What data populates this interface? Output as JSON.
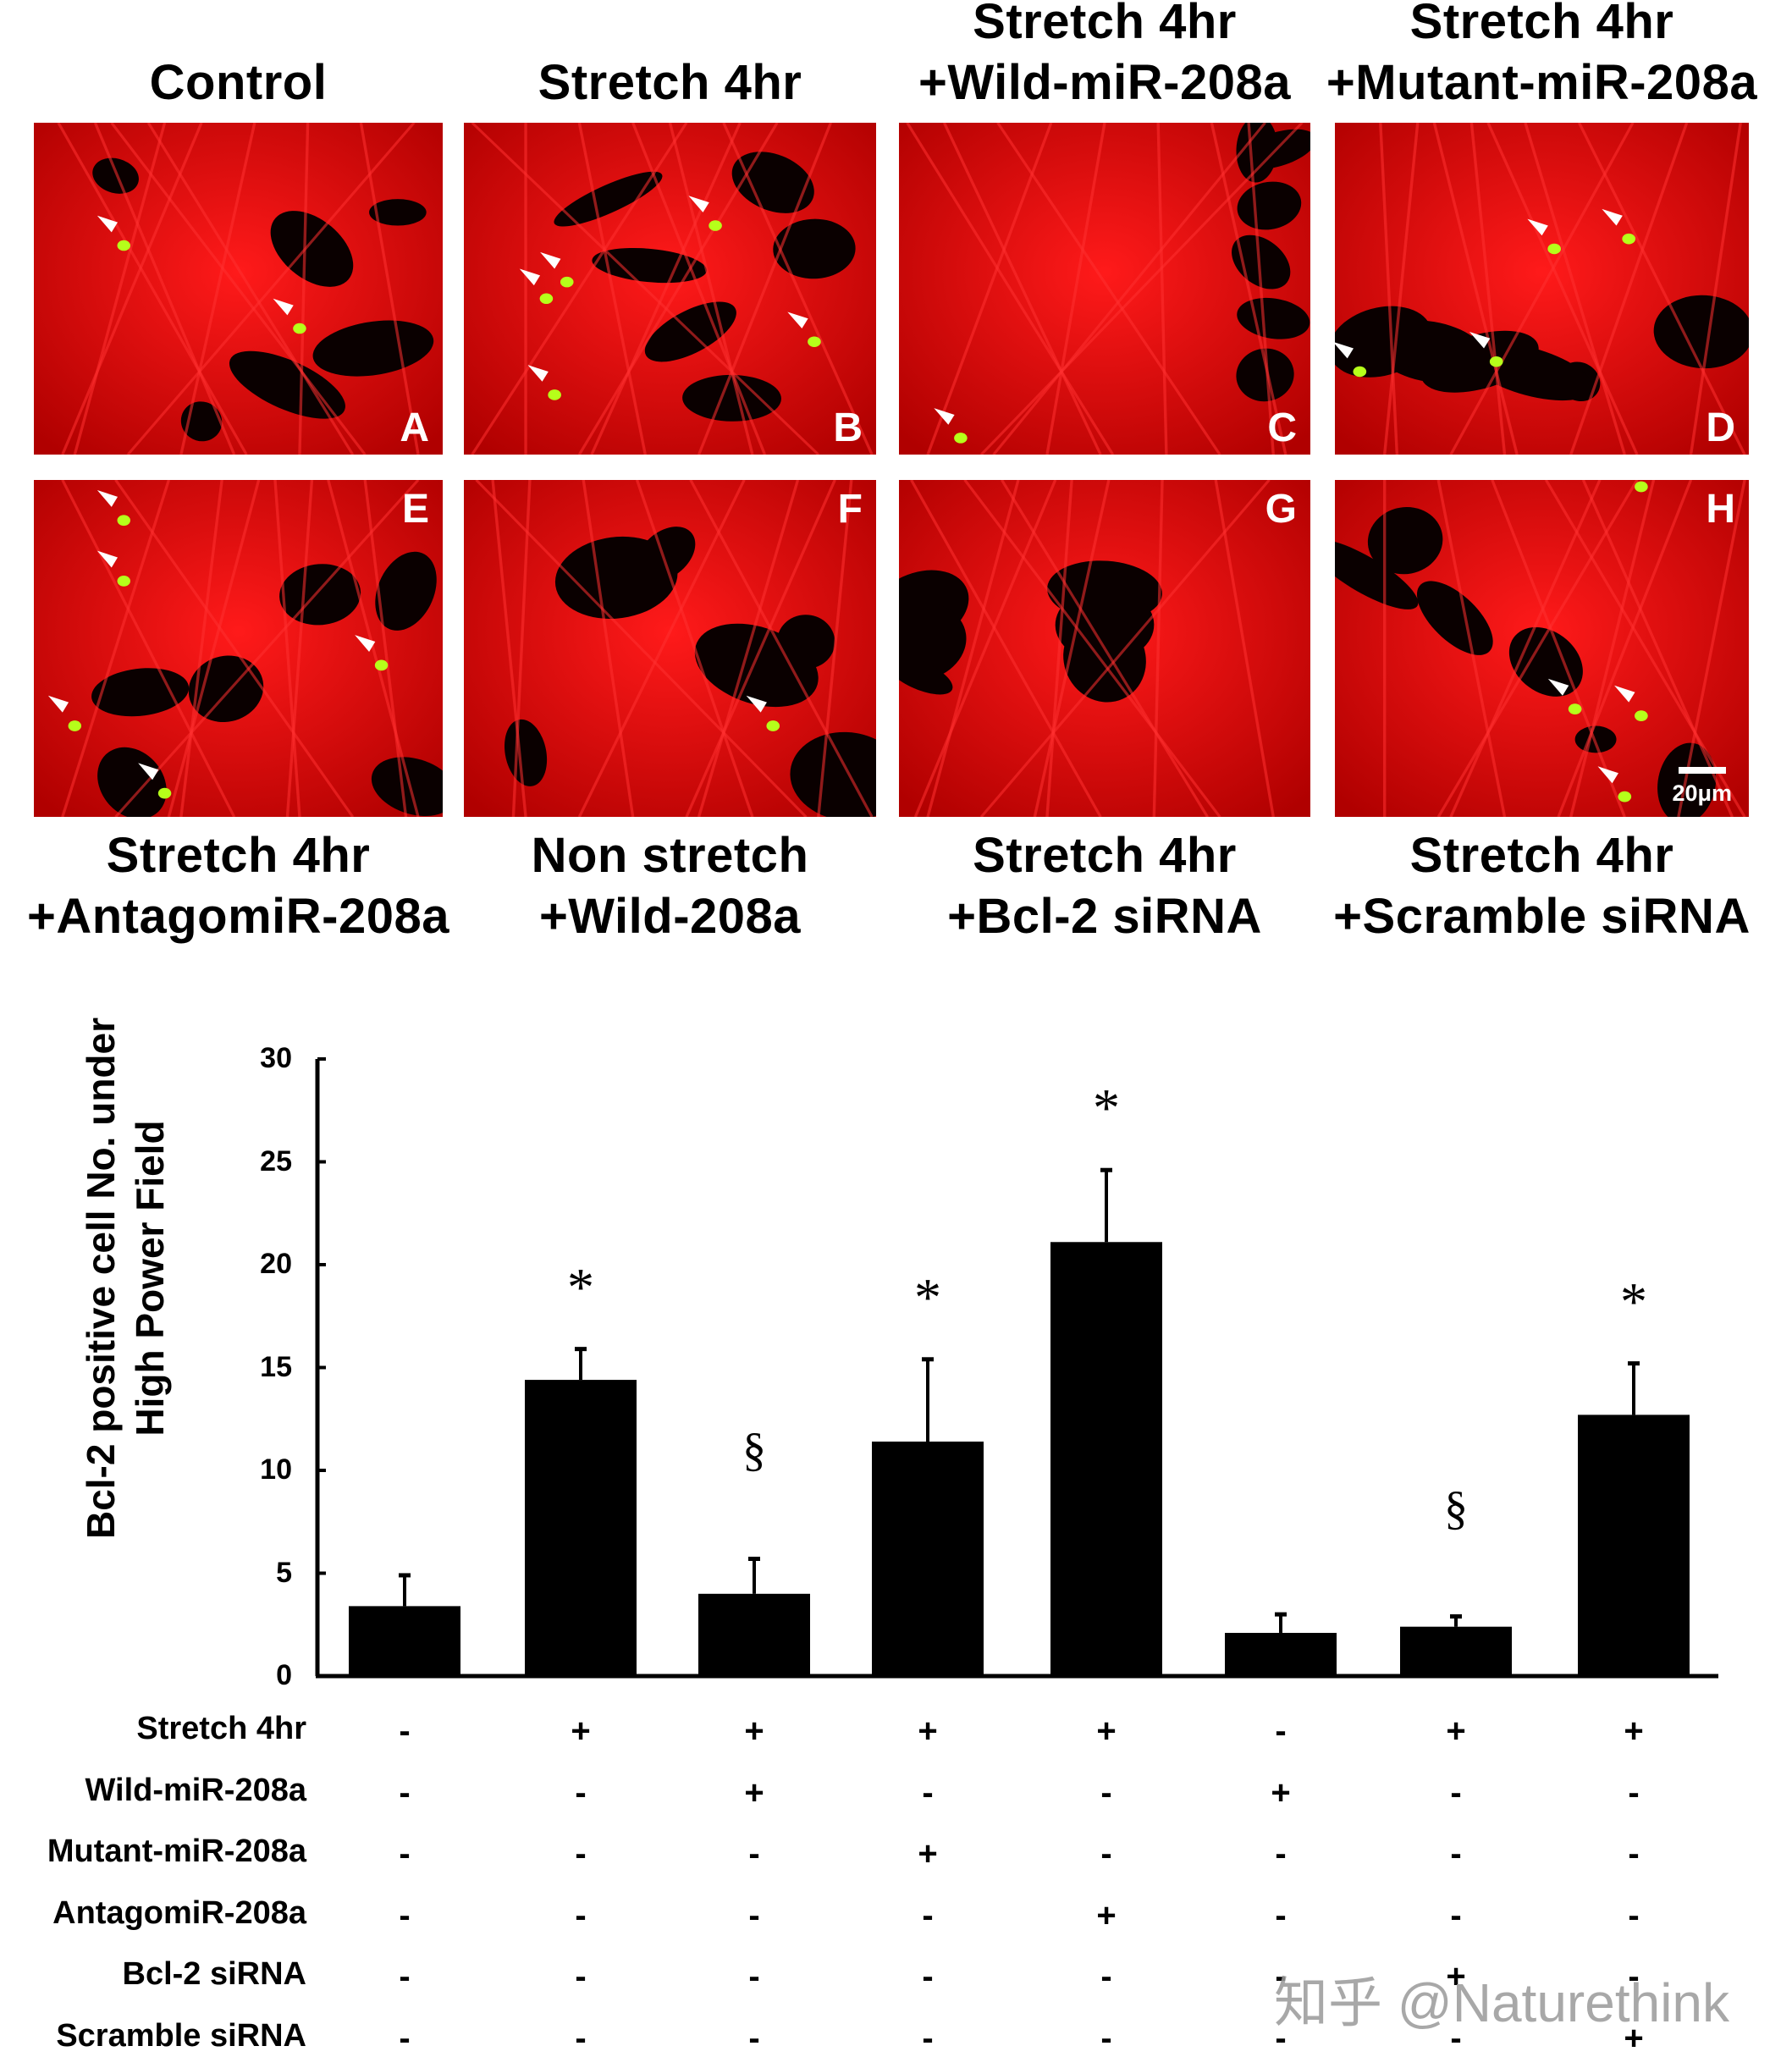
{
  "figure": {
    "panels": [
      {
        "letter": "A",
        "title_lines": [
          "Control"
        ],
        "position": "top"
      },
      {
        "letter": "B",
        "title_lines": [
          "Stretch 4hr"
        ],
        "position": "top"
      },
      {
        "letter": "C",
        "title_lines": [
          "Stretch 4hr",
          "+Wild-miR-208a"
        ],
        "position": "top"
      },
      {
        "letter": "D",
        "title_lines": [
          "Stretch 4hr",
          "+Mutant-miR-208a"
        ],
        "position": "top"
      },
      {
        "letter": "E",
        "title_lines": [
          "Stretch 4hr",
          "+AntagomiR-208a"
        ],
        "position": "bottom"
      },
      {
        "letter": "F",
        "title_lines": [
          "Non stretch",
          "+Wild-208a"
        ],
        "position": "bottom"
      },
      {
        "letter": "G",
        "title_lines": [
          "Stretch 4hr",
          "+Bcl-2 siRNA"
        ],
        "position": "bottom"
      },
      {
        "letter": "H",
        "title_lines": [
          "Stretch 4hr",
          "+Scramble siRNA"
        ],
        "position": "bottom"
      }
    ],
    "scale_bar": "20μm",
    "colors": {
      "cytoskeleton_red": "#e00000",
      "background_black": "#000000",
      "positive_green": "#9cff1a",
      "arrow_white": "#ffffff",
      "bar_black": "#000000"
    }
  },
  "chart_data": {
    "type": "bar",
    "title": "",
    "ylabel": "Bcl-2 positive cell No. under High Power Field",
    "ylabel_lines": [
      "Bcl-2 positive cell No. under",
      "High Power Field"
    ],
    "xlabel": "",
    "ylim": [
      0,
      30
    ],
    "yticks": [
      0,
      5,
      10,
      15,
      20,
      25,
      30
    ],
    "grid": false,
    "categories": [
      "Control",
      "Stretch 4hr",
      "Stretch 4hr + Wild-miR-208a",
      "Stretch 4hr + Mutant-miR-208a",
      "Stretch 4hr + AntagomiR-208a",
      "Non stretch + Wild-miR-208a",
      "Stretch 4hr + Bcl-2 siRNA",
      "Stretch 4hr + Scramble siRNA"
    ],
    "values": [
      3.4,
      14.4,
      4.0,
      11.4,
      21.1,
      2.1,
      2.4,
      12.7
    ],
    "error_upper": [
      4.9,
      15.9,
      5.7,
      15.4,
      24.6,
      3.0,
      2.9,
      15.2
    ],
    "annotations": [
      "",
      "*",
      "§",
      "*",
      "*",
      "",
      "§",
      "*"
    ],
    "condition_table": {
      "rows": [
        {
          "label": "Stretch 4hr",
          "cells": [
            "-",
            "+",
            "+",
            "+",
            "+",
            "-",
            "+",
            "+"
          ]
        },
        {
          "label": "Wild-miR-208a",
          "cells": [
            "-",
            "-",
            "+",
            "-",
            "-",
            "+",
            "-",
            "-"
          ]
        },
        {
          "label": "Mutant-miR-208a",
          "cells": [
            "-",
            "-",
            "-",
            "+",
            "-",
            "-",
            "-",
            "-"
          ]
        },
        {
          "label": "AntagomiR-208a",
          "cells": [
            "-",
            "-",
            "-",
            "-",
            "+",
            "-",
            "-",
            "-"
          ]
        },
        {
          "label": "Bcl-2 siRNA",
          "cells": [
            "-",
            "-",
            "-",
            "-",
            "-",
            "-",
            "+",
            "-"
          ]
        },
        {
          "label": "Scramble siRNA",
          "cells": [
            "-",
            "-",
            "-",
            "-",
            "-",
            "-",
            "-",
            "+"
          ]
        }
      ]
    }
  },
  "watermark": "知乎 @Naturethink"
}
